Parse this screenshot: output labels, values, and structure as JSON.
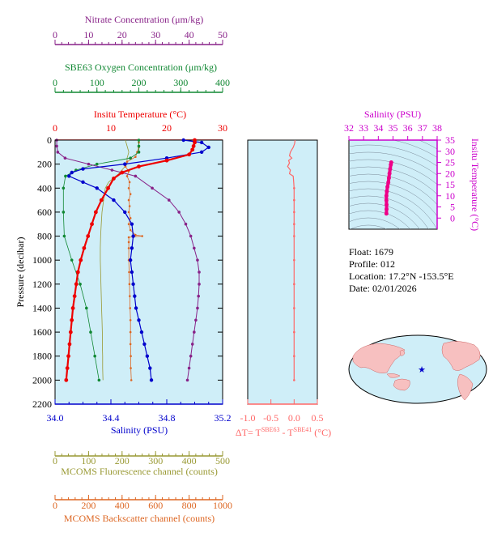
{
  "colors": {
    "nitrate": "#882288",
    "oxygen": "#118833",
    "temperature": "#ee0000",
    "salinity": "#0000cc",
    "fluorescence": "#999933",
    "backscatter": "#dd6622",
    "delta_t": "#ff6666",
    "ts_line": "#ee0088",
    "ts_axis": "#cc00cc",
    "panel_bg": "#cfeef8",
    "land": "#f7c0c0",
    "star": "#0000cc"
  },
  "info": {
    "float": "Float:  1679",
    "profile": "Profile:  012",
    "location": "Location:  17.2°N  -153.5°E",
    "date": "Date:  02/01/2026"
  },
  "chart_data": [
    {
      "type": "line",
      "ylabel": "Pressure (decibar)",
      "ylim": [
        2200,
        0
      ],
      "yticks": [
        "0",
        "200",
        "400",
        "600",
        "800",
        "1000",
        "1200",
        "1400",
        "1600",
        "1800",
        "2000",
        "2200"
      ],
      "axes": {
        "nitrate": {
          "label": "Nitrate Concentration (μm/kg)",
          "range": [
            0,
            50
          ],
          "ticks": [
            "0",
            "10",
            "20",
            "30",
            "40",
            "50"
          ]
        },
        "oxygen": {
          "label": "SBE63 Oxygen Concentration (μm/kg)",
          "range": [
            0,
            400
          ],
          "ticks": [
            "0",
            "100",
            "200",
            "300",
            "400"
          ]
        },
        "temperature": {
          "label": "Insitu Temperature (°C)",
          "range": [
            0,
            30
          ],
          "ticks": [
            "0",
            "10",
            "20",
            "30"
          ]
        },
        "salinity": {
          "label": "Salinity (PSU)",
          "range": [
            34.0,
            35.2
          ],
          "ticks": [
            "34.0",
            "34.4",
            "34.8",
            "35.2"
          ]
        },
        "fluorescence": {
          "label": "MCOMS Fluorescence channel (counts)",
          "range": [
            0,
            500
          ],
          "ticks": [
            "0",
            "100",
            "200",
            "300",
            "400",
            "500"
          ]
        },
        "backscatter": {
          "label": "MCOMS Backscatter channel (counts)",
          "range": [
            0,
            1000
          ],
          "ticks": [
            "0",
            "200",
            "400",
            "600",
            "800",
            "1000"
          ]
        }
      },
      "series": {
        "temperature": [
          [
            25,
            0
          ],
          [
            25,
            20
          ],
          [
            24.8,
            50
          ],
          [
            24.6,
            80
          ],
          [
            24,
            120
          ],
          [
            20,
            170
          ],
          [
            15,
            220
          ],
          [
            12,
            270
          ],
          [
            10.5,
            320
          ],
          [
            9.5,
            400
          ],
          [
            8.3,
            500
          ],
          [
            7.3,
            600
          ],
          [
            6.6,
            700
          ],
          [
            5.9,
            800
          ],
          [
            5.2,
            900
          ],
          [
            4.6,
            1000
          ],
          [
            4.1,
            1100
          ],
          [
            3.8,
            1200
          ],
          [
            3.5,
            1300
          ],
          [
            3.2,
            1400
          ],
          [
            3.0,
            1500
          ],
          [
            2.8,
            1600
          ],
          [
            2.6,
            1700
          ],
          [
            2.4,
            1800
          ],
          [
            2.2,
            1900
          ],
          [
            2.0,
            2000
          ]
        ],
        "salinity": [
          [
            34.92,
            0
          ],
          [
            35.05,
            20
          ],
          [
            35.1,
            60
          ],
          [
            35.05,
            100
          ],
          [
            34.8,
            150
          ],
          [
            34.5,
            200
          ],
          [
            34.2,
            240
          ],
          [
            34.12,
            270
          ],
          [
            34.1,
            300
          ],
          [
            34.2,
            350
          ],
          [
            34.3,
            400
          ],
          [
            34.42,
            500
          ],
          [
            34.5,
            600
          ],
          [
            34.55,
            700
          ],
          [
            34.56,
            800
          ],
          [
            34.55,
            900
          ],
          [
            34.54,
            1000
          ],
          [
            34.55,
            1100
          ],
          [
            34.56,
            1200
          ],
          [
            34.57,
            1300
          ],
          [
            34.58,
            1400
          ],
          [
            34.6,
            1500
          ],
          [
            34.62,
            1600
          ],
          [
            34.64,
            1700
          ],
          [
            34.66,
            1800
          ],
          [
            34.68,
            1900
          ],
          [
            34.69,
            2000
          ]
        ],
        "nitrate": [
          [
            0.5,
            0
          ],
          [
            0.5,
            50
          ],
          [
            0.8,
            100
          ],
          [
            3,
            150
          ],
          [
            10,
            200
          ],
          [
            17,
            250
          ],
          [
            24,
            300
          ],
          [
            29,
            400
          ],
          [
            34,
            500
          ],
          [
            37,
            600
          ],
          [
            39,
            700
          ],
          [
            40.5,
            800
          ],
          [
            41.5,
            900
          ],
          [
            42.5,
            1000
          ],
          [
            43,
            1100
          ],
          [
            43,
            1200
          ],
          [
            42.8,
            1300
          ],
          [
            42.5,
            1400
          ],
          [
            42,
            1500
          ],
          [
            41.5,
            1600
          ],
          [
            41,
            1700
          ],
          [
            40.5,
            1800
          ],
          [
            40,
            1900
          ],
          [
            39.5,
            2000
          ]
        ],
        "oxygen": [
          [
            200,
            0
          ],
          [
            200,
            50
          ],
          [
            200,
            100
          ],
          [
            180,
            150
          ],
          [
            100,
            200
          ],
          [
            50,
            250
          ],
          [
            25,
            300
          ],
          [
            20,
            400
          ],
          [
            20,
            600
          ],
          [
            22,
            800
          ],
          [
            40,
            1000
          ],
          [
            60,
            1200
          ],
          [
            75,
            1400
          ],
          [
            85,
            1600
          ],
          [
            95,
            1800
          ],
          [
            105,
            2000
          ]
        ],
        "fluorescence": [
          [
            210,
            0
          ],
          [
            215,
            50
          ],
          [
            220,
            100
          ],
          [
            215,
            150
          ],
          [
            215,
            200
          ],
          [
            190,
            280
          ],
          [
            160,
            350
          ],
          [
            150,
            400
          ],
          [
            145,
            500
          ],
          [
            140,
            600
          ],
          [
            138,
            700
          ],
          [
            136,
            800
          ],
          [
            135,
            900
          ],
          [
            135,
            1000
          ],
          [
            136,
            1100
          ],
          [
            137,
            1200
          ],
          [
            138,
            1300
          ],
          [
            139,
            1400
          ],
          [
            140,
            1500
          ],
          [
            141,
            1600
          ],
          [
            141,
            1700
          ],
          [
            142,
            1800
          ],
          [
            142,
            1900
          ],
          [
            143,
            2000
          ]
        ],
        "backscatter": [
          [
            500,
            0
          ],
          [
            500,
            20
          ],
          [
            500,
            60
          ],
          [
            490,
            100
          ],
          [
            480,
            140
          ],
          [
            430,
            180
          ],
          [
            420,
            220
          ],
          [
            440,
            260
          ],
          [
            430,
            300
          ],
          [
            445,
            350
          ],
          [
            440,
            400
          ],
          [
            450,
            450
          ],
          [
            440,
            500
          ],
          [
            445,
            550
          ],
          [
            440,
            600
          ],
          [
            450,
            650
          ],
          [
            440,
            700
          ],
          [
            450,
            750
          ],
          [
            480,
            790
          ],
          [
            520,
            800
          ],
          [
            440,
            810
          ],
          [
            440,
            850
          ],
          [
            440,
            900
          ],
          [
            440,
            1000
          ],
          [
            442,
            1100
          ],
          [
            444,
            1200
          ],
          [
            446,
            1300
          ],
          [
            448,
            1400
          ],
          [
            450,
            1500
          ],
          [
            450,
            1600
          ],
          [
            450,
            1700
          ],
          [
            452,
            1800
          ],
          [
            452,
            1900
          ],
          [
            455,
            2000
          ]
        ]
      }
    },
    {
      "type": "line",
      "xlabel": "ΔT= T^SBE63 - T^SBE41 (°C)",
      "xlim": [
        -1.0,
        0.5
      ],
      "xticks": [
        "-1.0",
        "-0.5",
        "0.0",
        "0.5"
      ],
      "xlabel_parts": {
        "prefix": "ΔT= T",
        "sup1": "SBE63",
        "mid": " - T",
        "sup2": "SBE41",
        "suffix": " (°C)"
      },
      "ylim": [
        2200,
        0
      ],
      "values": [
        [
          0.02,
          0
        ],
        [
          0.01,
          30
        ],
        [
          -0.02,
          60
        ],
        [
          -0.08,
          100
        ],
        [
          -0.1,
          130
        ],
        [
          -0.05,
          150
        ],
        [
          -0.12,
          170
        ],
        [
          -0.1,
          190
        ],
        [
          -0.14,
          220
        ],
        [
          -0.08,
          250
        ],
        [
          -0.1,
          280
        ],
        [
          -0.02,
          300
        ],
        [
          -0.01,
          350
        ],
        [
          0.0,
          400
        ],
        [
          0.0,
          500
        ],
        [
          0.0,
          600
        ],
        [
          0.0,
          700
        ],
        [
          0.0,
          800
        ],
        [
          0.0,
          1000
        ],
        [
          0.0,
          1200
        ],
        [
          0.0,
          1400
        ],
        [
          0.0,
          1600
        ],
        [
          0.0,
          1800
        ],
        [
          0.0,
          2000
        ]
      ]
    },
    {
      "type": "line",
      "title": "",
      "xlabel": "Salinity (PSU)",
      "xlim": [
        32,
        38
      ],
      "xticks": [
        "32",
        "33",
        "34",
        "35",
        "36",
        "37",
        "38"
      ],
      "ylabel": "Insitu Temperature (°C)",
      "ylim": [
        -5,
        35
      ],
      "yticks": [
        "0",
        "5",
        "10",
        "15",
        "20",
        "25",
        "30",
        "35"
      ],
      "values": [
        [
          34.55,
          2
        ],
        [
          34.56,
          4
        ],
        [
          34.56,
          6
        ],
        [
          34.55,
          8
        ],
        [
          34.55,
          10
        ],
        [
          34.58,
          12
        ],
        [
          34.62,
          14
        ],
        [
          34.68,
          16
        ],
        [
          34.72,
          18
        ],
        [
          34.76,
          20
        ],
        [
          34.8,
          22
        ],
        [
          34.85,
          24
        ],
        [
          34.88,
          25
        ]
      ]
    }
  ]
}
